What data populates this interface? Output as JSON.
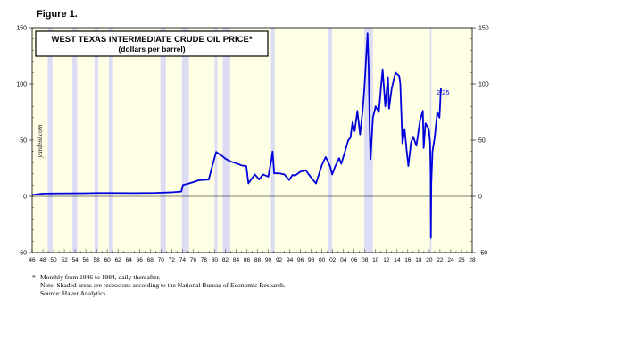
{
  "figure_label": "Figure 1.",
  "footnotes": {
    "star": "*",
    "line1": "Monthly from 1946 to 1984, daily thereafter.",
    "line2": "Note: Shaded areas are recessions according to the National Bureau of Economic Research.",
    "line3": "Source: Haver Analytics."
  },
  "colors": {
    "plot_background": "#ffffe6",
    "recession_shade": "#dcdcf5",
    "series_line": "#0000dd",
    "axis": "#000000"
  },
  "chart_data": {
    "type": "line",
    "title": "WEST TEXAS INTERMEDIATE CRUDE OIL PRICE*",
    "subtitle": "(dollars per barrel)",
    "watermark": "yardeni.com",
    "xlim": [
      1946,
      2028
    ],
    "ylim": [
      -50,
      150
    ],
    "y_ticks": [
      -50,
      0,
      50,
      100,
      150
    ],
    "y_ticks_right": [
      -50,
      0,
      50,
      100,
      150
    ],
    "x_ticks": [
      46,
      48,
      50,
      52,
      54,
      56,
      58,
      60,
      62,
      64,
      66,
      68,
      70,
      72,
      74,
      76,
      78,
      80,
      82,
      84,
      86,
      88,
      90,
      92,
      94,
      96,
      98,
      "00",
      "02",
      "04",
      "06",
      "08",
      10,
      12,
      14,
      16,
      18,
      20,
      22,
      24,
      26,
      28
    ],
    "zero_line": true,
    "end_label": "2/25",
    "recessions": [
      [
        1948.9,
        1949.8
      ],
      [
        1953.5,
        1954.4
      ],
      [
        1957.6,
        1958.3
      ],
      [
        1960.3,
        1961.1
      ],
      [
        1969.9,
        1970.9
      ],
      [
        1973.9,
        1975.2
      ],
      [
        1980.0,
        1980.5
      ],
      [
        1981.5,
        1982.9
      ],
      [
        1990.5,
        1991.2
      ],
      [
        2001.2,
        2001.9
      ],
      [
        2007.9,
        2009.5
      ],
      [
        2020.1,
        2020.4
      ]
    ],
    "series": [
      {
        "values": [
          [
            1946,
            1.2
          ],
          [
            1947,
            1.9
          ],
          [
            1948,
            2.5
          ],
          [
            1950,
            2.6
          ],
          [
            1953,
            2.7
          ],
          [
            1956,
            2.8
          ],
          [
            1958,
            3.0
          ],
          [
            1961,
            3.0
          ],
          [
            1965,
            2.9
          ],
          [
            1969,
            3.1
          ],
          [
            1972,
            3.6
          ],
          [
            1973.8,
            4.3
          ],
          [
            1974.1,
            10.1
          ],
          [
            1975,
            11.2
          ],
          [
            1976,
            12.6
          ],
          [
            1977,
            14.3
          ],
          [
            1978.9,
            14.9
          ],
          [
            1979.4,
            24.0
          ],
          [
            1979.9,
            33.0
          ],
          [
            1980.3,
            39.5
          ],
          [
            1980.9,
            37.5
          ],
          [
            1981.4,
            36.0
          ],
          [
            1982,
            33.5
          ],
          [
            1983,
            31.0
          ],
          [
            1984,
            29.5
          ],
          [
            1985,
            27.5
          ],
          [
            1985.9,
            27.0
          ],
          [
            1986.3,
            11.5
          ],
          [
            1986.8,
            15.0
          ],
          [
            1987.5,
            19.5
          ],
          [
            1988.3,
            15.0
          ],
          [
            1989,
            19.5
          ],
          [
            1990,
            17.5
          ],
          [
            1990.6,
            33.0
          ],
          [
            1990.8,
            40.0
          ],
          [
            1991.1,
            20.5
          ],
          [
            1992,
            20.5
          ],
          [
            1993,
            19.5
          ],
          [
            1993.9,
            14.5
          ],
          [
            1994.5,
            19.0
          ],
          [
            1995,
            18.5
          ],
          [
            1996,
            22.0
          ],
          [
            1997,
            23.0
          ],
          [
            1998.1,
            16.0
          ],
          [
            1998.9,
            11.5
          ],
          [
            1999.5,
            20.5
          ],
          [
            2000,
            28.0
          ],
          [
            2000.7,
            35.0
          ],
          [
            2001.5,
            27.0
          ],
          [
            2001.9,
            19.5
          ],
          [
            2002.5,
            27.0
          ],
          [
            2003.2,
            34.0
          ],
          [
            2003.6,
            29.0
          ],
          [
            2004.3,
            40.0
          ],
          [
            2004.9,
            50.0
          ],
          [
            2005.3,
            52.0
          ],
          [
            2005.7,
            66.0
          ],
          [
            2006.1,
            58.0
          ],
          [
            2006.6,
            76.0
          ],
          [
            2007.1,
            55.0
          ],
          [
            2007.6,
            77.0
          ],
          [
            2007.9,
            96.0
          ],
          [
            2008.5,
            145.0
          ],
          [
            2008.7,
            115.0
          ],
          [
            2008.9,
            60.0
          ],
          [
            2009.05,
            33.0
          ],
          [
            2009.5,
            70.0
          ],
          [
            2010,
            80.0
          ],
          [
            2010.6,
            75.0
          ],
          [
            2011.3,
            113.0
          ],
          [
            2011.8,
            80.0
          ],
          [
            2012.3,
            106.0
          ],
          [
            2012.5,
            78.0
          ],
          [
            2013,
            96.0
          ],
          [
            2013.7,
            110.0
          ],
          [
            2014.4,
            107.0
          ],
          [
            2014.6,
            100.0
          ],
          [
            2015,
            47.0
          ],
          [
            2015.4,
            60.0
          ],
          [
            2015.8,
            40.0
          ],
          [
            2016.1,
            27.0
          ],
          [
            2016.6,
            48.0
          ],
          [
            2017,
            53.0
          ],
          [
            2017.6,
            45.0
          ],
          [
            2018.3,
            68.0
          ],
          [
            2018.8,
            76.0
          ],
          [
            2018.95,
            43.0
          ],
          [
            2019.3,
            65.0
          ],
          [
            2019.9,
            60.0
          ],
          [
            2020.15,
            48.0
          ],
          [
            2020.25,
            20.0
          ],
          [
            2020.3,
            -37.0
          ],
          [
            2020.38,
            12.0
          ],
          [
            2020.6,
            40.0
          ],
          [
            2021,
            52.0
          ],
          [
            2021.5,
            75.0
          ],
          [
            2021.9,
            70.0
          ],
          [
            2022.1,
            90.0
          ],
          [
            2022.17,
            96.0
          ]
        ]
      }
    ]
  }
}
